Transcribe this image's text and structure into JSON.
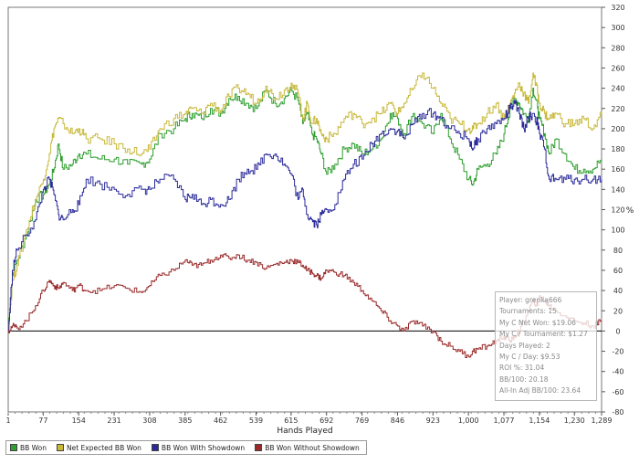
{
  "chart_data": {
    "type": "line",
    "xlabel": "Hands Played",
    "ylabel": "%",
    "xlim": [
      1,
      1289
    ],
    "ylim": [
      -80,
      320
    ],
    "x_ticks": [
      1,
      77,
      154,
      231,
      308,
      385,
      462,
      539,
      615,
      692,
      769,
      846,
      923,
      1000,
      1077,
      1154,
      1230,
      1289
    ],
    "x_tick_labels": [
      "1",
      "77",
      "154",
      "231",
      "308",
      "385",
      "462",
      "539",
      "615",
      "692",
      "769",
      "846",
      "923",
      "1,000",
      "1,077",
      "1,154",
      "1,230",
      "1,289"
    ],
    "y_ticks": [
      -80,
      -60,
      -40,
      -20,
      0,
      20,
      40,
      60,
      80,
      100,
      120,
      140,
      160,
      180,
      200,
      220,
      240,
      260,
      280,
      300,
      320
    ],
    "series": [
      {
        "name": "BB Won",
        "color": "#2e9e2e",
        "x": [
          1,
          10,
          20,
          40,
          60,
          77,
          90,
          100,
          110,
          120,
          140,
          154,
          170,
          200,
          231,
          260,
          290,
          308,
          330,
          360,
          385,
          400,
          420,
          440,
          462,
          480,
          500,
          520,
          539,
          560,
          580,
          600,
          615,
          630,
          640,
          650,
          660,
          670,
          680,
          692,
          710,
          730,
          750,
          769,
          790,
          810,
          830,
          846,
          860,
          880,
          900,
          923,
          940,
          960,
          980,
          1000,
          1010,
          1020,
          1040,
          1060,
          1077,
          1090,
          1100,
          1110,
          1120,
          1130,
          1140,
          1150,
          1154,
          1165,
          1175,
          1190,
          1210,
          1230,
          1250,
          1270,
          1289
        ],
        "y": [
          5,
          55,
          70,
          95,
          130,
          135,
          145,
          160,
          185,
          160,
          165,
          175,
          175,
          170,
          170,
          165,
          165,
          170,
          195,
          200,
          210,
          215,
          210,
          220,
          215,
          230,
          232,
          225,
          220,
          238,
          225,
          230,
          238,
          228,
          205,
          215,
          195,
          190,
          175,
          155,
          165,
          180,
          185,
          175,
          180,
          190,
          215,
          210,
          195,
          215,
          205,
          195,
          215,
          190,
          170,
          150,
          145,
          160,
          165,
          175,
          195,
          220,
          230,
          225,
          215,
          210,
          240,
          220,
          210,
          195,
          175,
          190,
          175,
          160,
          160,
          160,
          170
        ]
      },
      {
        "name": "Net Expected BB Won",
        "color": "#c8b83a",
        "x": [
          1,
          10,
          20,
          40,
          60,
          77,
          90,
          100,
          110,
          120,
          140,
          154,
          170,
          200,
          231,
          260,
          290,
          308,
          330,
          360,
          385,
          400,
          420,
          440,
          462,
          480,
          500,
          520,
          539,
          560,
          580,
          600,
          615,
          630,
          640,
          650,
          660,
          670,
          680,
          692,
          710,
          730,
          750,
          769,
          790,
          810,
          830,
          846,
          860,
          880,
          900,
          923,
          940,
          960,
          980,
          1000,
          1010,
          1020,
          1040,
          1060,
          1077,
          1090,
          1100,
          1110,
          1120,
          1130,
          1140,
          1150,
          1154,
          1165,
          1175,
          1190,
          1210,
          1230,
          1250,
          1270,
          1289
        ],
        "y": [
          5,
          50,
          65,
          100,
          130,
          150,
          175,
          200,
          210,
          205,
          195,
          200,
          190,
          190,
          185,
          180,
          175,
          180,
          200,
          210,
          215,
          220,
          215,
          225,
          218,
          232,
          240,
          235,
          225,
          242,
          230,
          238,
          245,
          235,
          210,
          225,
          205,
          210,
          195,
          190,
          195,
          210,
          215,
          205,
          210,
          215,
          225,
          215,
          225,
          240,
          255,
          240,
          225,
          210,
          205,
          200,
          200,
          205,
          215,
          225,
          210,
          225,
          235,
          245,
          235,
          225,
          255,
          235,
          225,
          215,
          210,
          215,
          205,
          205,
          210,
          200,
          215
        ]
      },
      {
        "name": "BB Won With Showdown",
        "color": "#2a2a9a",
        "x": [
          1,
          10,
          20,
          40,
          60,
          77,
          90,
          100,
          110,
          120,
          140,
          154,
          170,
          200,
          231,
          260,
          290,
          308,
          330,
          360,
          385,
          400,
          420,
          440,
          462,
          480,
          500,
          520,
          539,
          560,
          580,
          600,
          615,
          630,
          640,
          650,
          660,
          670,
          680,
          692,
          710,
          730,
          750,
          769,
          790,
          810,
          830,
          846,
          860,
          880,
          900,
          923,
          940,
          960,
          980,
          1000,
          1010,
          1020,
          1040,
          1060,
          1077,
          1090,
          1100,
          1110,
          1120,
          1130,
          1140,
          1150,
          1154,
          1165,
          1175,
          1190,
          1210,
          1230,
          1250,
          1270,
          1289
        ],
        "y": [
          0,
          60,
          80,
          95,
          110,
          140,
          150,
          135,
          115,
          110,
          120,
          125,
          150,
          145,
          140,
          135,
          140,
          140,
          150,
          150,
          130,
          135,
          125,
          130,
          125,
          130,
          150,
          160,
          160,
          175,
          175,
          165,
          155,
          130,
          140,
          115,
          110,
          105,
          115,
          120,
          125,
          150,
          165,
          170,
          185,
          195,
          200,
          198,
          190,
          205,
          215,
          215,
          210,
          200,
          195,
          190,
          180,
          190,
          200,
          205,
          210,
          220,
          225,
          215,
          200,
          210,
          215,
          205,
          195,
          180,
          150,
          150,
          150,
          150,
          150,
          150,
          150
        ]
      },
      {
        "name": "BB Won Without Showdown",
        "color": "#9a2a2a",
        "x": [
          1,
          10,
          20,
          40,
          60,
          77,
          90,
          100,
          110,
          120,
          140,
          154,
          170,
          200,
          231,
          260,
          290,
          308,
          330,
          360,
          385,
          400,
          420,
          440,
          462,
          480,
          500,
          520,
          539,
          560,
          580,
          600,
          615,
          630,
          640,
          650,
          660,
          670,
          680,
          692,
          710,
          730,
          750,
          769,
          790,
          810,
          830,
          846,
          860,
          880,
          900,
          923,
          940,
          960,
          980,
          1000,
          1010,
          1020,
          1040,
          1060,
          1077,
          1090,
          1100,
          1110,
          1120,
          1130,
          1140,
          1150,
          1154,
          1165,
          1175,
          1190,
          1210,
          1230,
          1250,
          1270,
          1289
        ],
        "y": [
          0,
          5,
          3,
          10,
          25,
          40,
          50,
          45,
          42,
          48,
          40,
          45,
          40,
          40,
          45,
          42,
          38,
          45,
          55,
          60,
          70,
          65,
          65,
          70,
          75,
          72,
          75,
          70,
          68,
          62,
          66,
          68,
          70,
          68,
          65,
          60,
          58,
          55,
          52,
          60,
          58,
          55,
          48,
          40,
          30,
          20,
          10,
          5,
          0,
          10,
          5,
          0,
          -10,
          -15,
          -20,
          -25,
          -20,
          -18,
          -15,
          -10,
          -5,
          -10,
          -5,
          0,
          10,
          20,
          30,
          25,
          35,
          30,
          25,
          20,
          15,
          10,
          8,
          5,
          10
        ]
      }
    ]
  },
  "stats": {
    "player": "Player: grenka666",
    "tournaments": "Tournaments: 15",
    "net_won": "My C Net Won: $19.06",
    "per_tournament": "My C / Tournament: $1.27",
    "days_played": "Days Played: 2",
    "per_day": "My C / Day: $9.53",
    "roi": "ROI %: 31.04",
    "bb100": "BB/100: 20.18",
    "allin_bb100": "All-In Adj BB/100: 23.64"
  }
}
